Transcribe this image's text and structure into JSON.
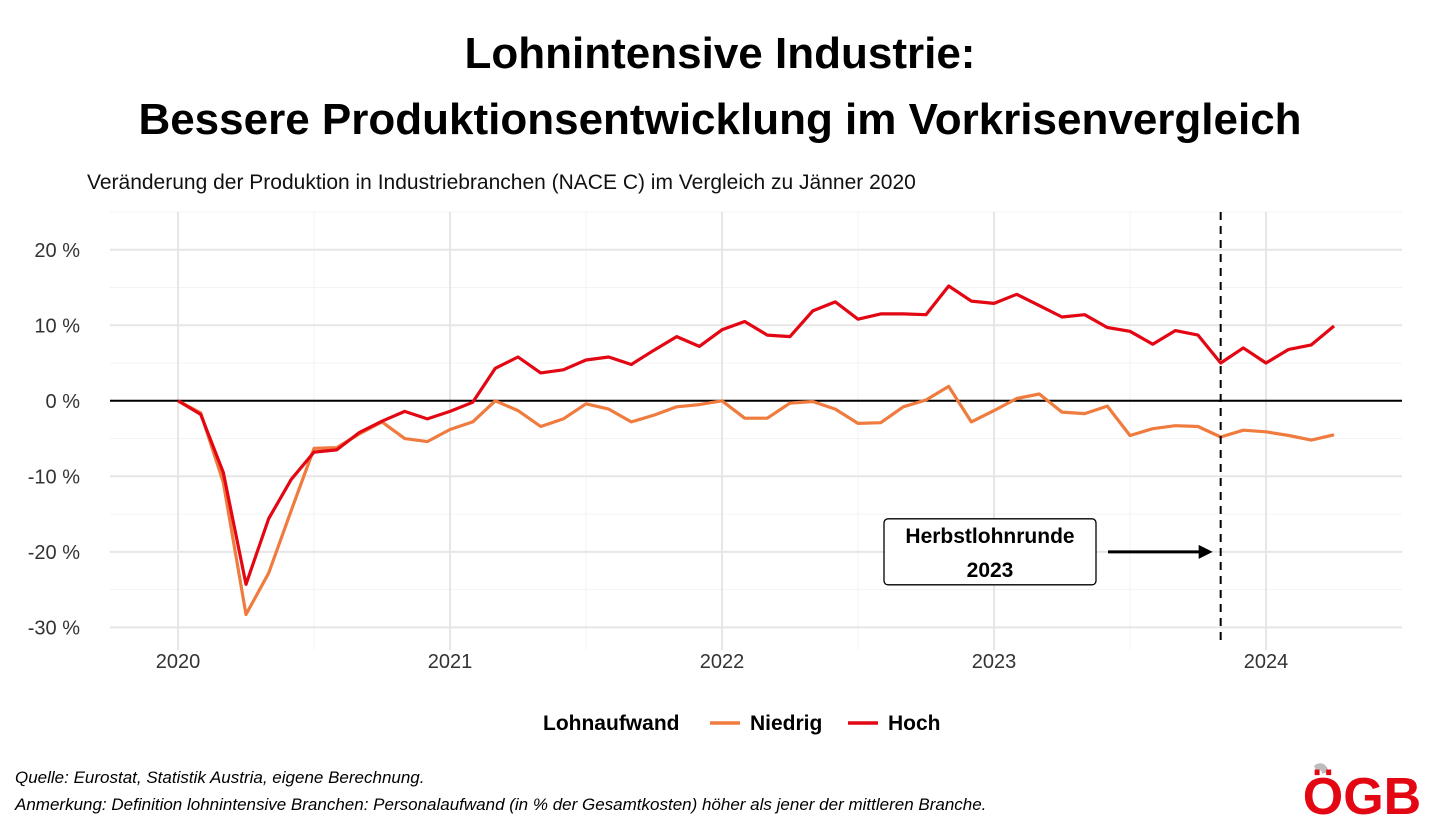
{
  "header": {
    "title_line1": "Lohnintensive Industrie:",
    "title_line2": "Bessere Produktionsentwicklung im Vorkrisenvergleich",
    "subtitle": "Veränderung der Produktion in Industriebranchen (NACE C) im Vergleich zu Jänner 2020"
  },
  "chart_data": {
    "type": "line",
    "title": "Lohnintensive Industrie: Bessere Produktionsentwicklung im Vorkrisenvergleich",
    "subtitle": "Veränderung der Produktion in Industriebranchen (NACE C) im Vergleich zu Jänner 2020",
    "xlabel": "",
    "ylabel": "",
    "x_ticks": [
      "2020",
      "2021",
      "2022",
      "2023",
      "2024"
    ],
    "y_ticks": [
      "20 %",
      "10 %",
      "0 %",
      "-10 %",
      "-20 %",
      "-30 %"
    ],
    "ylim": [
      -33,
      25
    ],
    "xlim": [
      "2019-10",
      "2024-07"
    ],
    "grid": true,
    "legend_position": "bottom",
    "legend_title": "Lohnaufwand",
    "x": [
      "2020-01",
      "2020-02",
      "2020-03",
      "2020-04",
      "2020-05",
      "2020-06",
      "2020-07",
      "2020-08",
      "2020-09",
      "2020-10",
      "2020-11",
      "2020-12",
      "2021-01",
      "2021-02",
      "2021-03",
      "2021-04",
      "2021-05",
      "2021-06",
      "2021-07",
      "2021-08",
      "2021-09",
      "2021-10",
      "2021-11",
      "2021-12",
      "2022-01",
      "2022-02",
      "2022-03",
      "2022-04",
      "2022-05",
      "2022-06",
      "2022-07",
      "2022-08",
      "2022-09",
      "2022-10",
      "2022-11",
      "2022-12",
      "2023-01",
      "2023-02",
      "2023-03",
      "2023-04",
      "2023-05",
      "2023-06",
      "2023-07",
      "2023-08",
      "2023-09",
      "2023-10",
      "2023-11",
      "2023-12",
      "2024-01",
      "2024-02",
      "2024-03",
      "2024-04"
    ],
    "series": [
      {
        "name": "Niedrig",
        "color": "#f07b3f",
        "values": [
          0,
          -1.6,
          -10.8,
          -28.3,
          -22.8,
          -14.5,
          -6.3,
          -6.2,
          -4.4,
          -2.8,
          -5.0,
          -5.4,
          -3.8,
          -2.8,
          0,
          -1.3,
          -3.4,
          -2.4,
          -0.4,
          -1.1,
          -2.8,
          -1.9,
          -0.8,
          -0.5,
          0,
          -2.3,
          -2.3,
          -0.3,
          -0.1,
          -1.1,
          -3.0,
          -2.9,
          -0.8,
          0.1,
          1.9,
          -2.8,
          -1.3,
          0.3,
          0.9,
          -1.5,
          -1.7,
          -0.7,
          -4.6,
          -3.7,
          -3.3,
          -3.4,
          -4.8,
          -3.9,
          -4.1,
          -4.6,
          -5.2,
          -4.5
        ]
      },
      {
        "name": "Hoch",
        "color": "#e30613",
        "values": [
          0,
          -1.8,
          -9.5,
          -24.3,
          -15.6,
          -10.4,
          -6.8,
          -6.5,
          -4.2,
          -2.7,
          -1.4,
          -2.4,
          -1.4,
          -0.2,
          4.3,
          5.8,
          3.7,
          4.1,
          5.4,
          5.8,
          4.8,
          6.7,
          8.5,
          7.2,
          9.4,
          10.5,
          8.7,
          8.5,
          11.9,
          13.1,
          10.8,
          11.5,
          11.5,
          11.4,
          15.2,
          13.2,
          12.9,
          14.1,
          12.6,
          11.1,
          11.4,
          9.7,
          9.2,
          7.5,
          9.3,
          8.7,
          5.0,
          7.0,
          5.0,
          6.8,
          7.4,
          9.9
        ]
      }
    ],
    "vertical_line": {
      "x": "2023-11",
      "style": "dashed"
    },
    "annotation": {
      "line1": "Herbstlohnrunde",
      "line2": "2023",
      "y": -20
    }
  },
  "footer": {
    "source": "Quelle: Eurostat, Statistik Austria, eigene Berechnung.",
    "note": "Anmerkung: Definition lohnintensive Branchen: Personalaufwand (in % der Gesamtkosten) höher als jener der mittleren Branche.",
    "logo_text": "ÖGB",
    "logo_color": "#e30613"
  }
}
